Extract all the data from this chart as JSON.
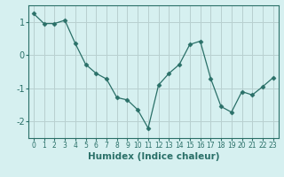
{
  "x": [
    0,
    1,
    2,
    3,
    4,
    5,
    6,
    7,
    8,
    9,
    10,
    11,
    12,
    13,
    14,
    15,
    16,
    17,
    18,
    19,
    20,
    21,
    22,
    23
  ],
  "y": [
    1.25,
    0.95,
    0.95,
    1.05,
    0.35,
    -0.28,
    -0.55,
    -0.72,
    -1.28,
    -1.35,
    -1.65,
    -2.2,
    -0.9,
    -0.55,
    -0.28,
    0.32,
    0.42,
    -0.7,
    -1.55,
    -1.72,
    -1.1,
    -1.2,
    -0.95,
    -0.68
  ],
  "line_color": "#2a7068",
  "marker": "D",
  "marker_size": 2.5,
  "bg_color": "#d6f0f0",
  "grid_color": "#b8d0d0",
  "xlabel": "Humidex (Indice chaleur)",
  "xlabel_fontsize": 7.5,
  "yticks": [
    -2,
    -1,
    0,
    1
  ],
  "xticks": [
    0,
    1,
    2,
    3,
    4,
    5,
    6,
    7,
    8,
    9,
    10,
    11,
    12,
    13,
    14,
    15,
    16,
    17,
    18,
    19,
    20,
    21,
    22,
    23
  ],
  "ylim": [
    -2.5,
    1.5
  ],
  "xlim": [
    -0.5,
    23.5
  ],
  "tick_fontsize": 5.5,
  "ytick_fontsize": 7.0
}
